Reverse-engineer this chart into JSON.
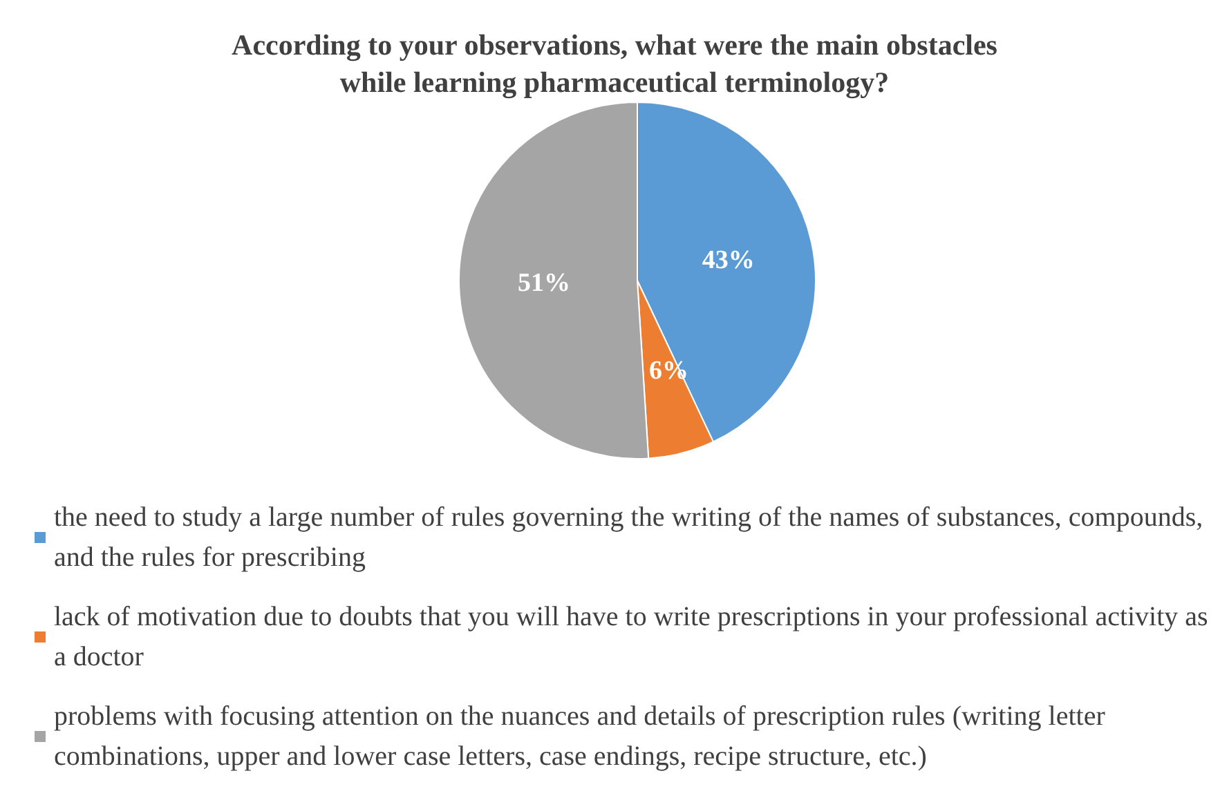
{
  "chart_data": {
    "type": "pie",
    "title": "According to your observations, what were the main obstacles\nwhile learning pharmaceutical terminology?",
    "categories": [
      "the need to study a large number of rules governing the writing of the names of substances, compounds, and the rules for prescribing",
      "lack of motivation due to doubts that you will have to write prescriptions in your professional activity as a doctor",
      "problems with focusing attention on the nuances and details of prescription rules (writing letter combinations, upper and lower case letters, case endings, recipe structure, etc.)"
    ],
    "values": [
      43,
      6,
      51
    ],
    "colors": [
      "#5b9bd5",
      "#ed7d31",
      "#a5a5a5"
    ],
    "value_labels": [
      "43%",
      "6%",
      "51%"
    ],
    "legend": "bottom"
  }
}
